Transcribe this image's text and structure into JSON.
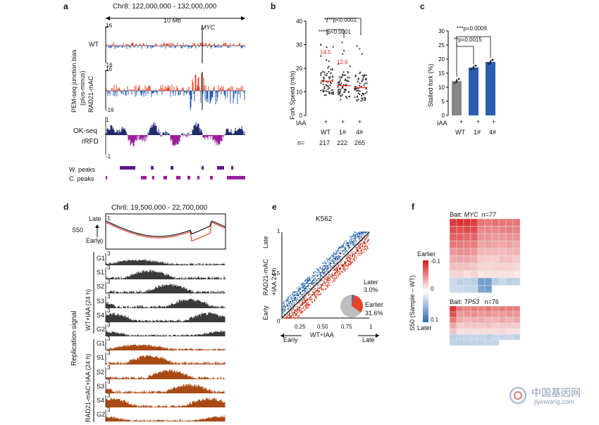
{
  "panels": {
    "a": {
      "letter": "a",
      "region": "Chr8: 122,000,000 - 132,000,000",
      "scale": "10 Mb",
      "gene": "MYC",
      "ylab_pem1": "PEM-seq junction bias",
      "ylab_pem2": "(plus-minus)",
      "track_wt": "WT",
      "track_rad": "RAD21-mAC",
      "ymax": "16",
      "ymin": "-16",
      "ok_seq": "OK-seq",
      "rrfd": "rRFD",
      "ok_max": "1",
      "ok_min": "-1",
      "w_peaks": "W. peaks",
      "c_peaks": "C. peaks"
    },
    "b": {
      "letter": "b",
      "ylabel": "Fork Speed (nt/s)",
      "row_label": "IAA",
      "plus": "+",
      "groups": [
        "WT",
        "1#",
        "4#"
      ],
      "n_label": "n=",
      "n_values": [
        "217",
        "222",
        "265"
      ],
      "medians": [
        "14.5",
        "12.6"
      ],
      "p1": "****p<0.0001",
      "p2": "****p<0.0001",
      "ticks": [
        "0",
        "10",
        "20",
        "30",
        "40"
      ]
    },
    "c": {
      "letter": "c",
      "ylabel": "Stalled fork (%)",
      "row_label": "IAA",
      "plus": "+",
      "groups": [
        "WT",
        "1#",
        "4#"
      ],
      "p1": "***p=0.0009",
      "p2": "**p=0.0015",
      "ticks": [
        "0",
        "5",
        "10",
        "15",
        "20",
        "25",
        "30"
      ]
    },
    "d": {
      "letter": "d",
      "region": "Chr6: 19,500,000 - 22,700,000",
      "late": "Late",
      "early": "Early",
      "s50": "S50",
      "y1": "1",
      "y0": "0",
      "rep_signal": "Replication signal",
      "group_wt": "WT+IAA (24 h)",
      "group_rad": "RAD21-mAC+IAA (24 h)",
      "phases": [
        "G1",
        "S1",
        "S2",
        "S3",
        "S4",
        "G2"
      ],
      "ymax": "3"
    },
    "e": {
      "letter": "e",
      "cell": "K562",
      "ylabel1": "RAD21-mAC",
      "ylabel2": "+IAA 24 h",
      "late_y": "Late",
      "early_y": "Early",
      "xlabel": "WT+IAA",
      "early_x": "Early",
      "late_x": "Late",
      "yticks": [
        "0",
        "0.5",
        "1"
      ],
      "xticks": [
        "0.25",
        "0.50",
        "0.75",
        "1"
      ],
      "later_label": "Later",
      "later_pct": "3.0%",
      "earlier_label": "Earlier",
      "earlier_pct": "31.6%"
    },
    "f": {
      "letter": "f",
      "bait1": "Bait:",
      "gene1": "MYC",
      "n1": "n=77",
      "bait2": "Bait:",
      "gene2": "TP53",
      "n2": "n=76",
      "ylabel": "S50 (Sample – WT)",
      "earlier": "Earlier",
      "later": "Later",
      "cb_top": "-0.1",
      "cb_mid": "0",
      "cb_bot": "0.1"
    }
  },
  "watermark": {
    "cn": "中国基因网",
    "url": "jiyinwang.com"
  },
  "chart_data": [
    {
      "type": "scatter",
      "title": "",
      "categories": [
        "WT",
        "1#",
        "4#"
      ],
      "medians": [
        14.5,
        12.6,
        11.8
      ],
      "n": [
        217,
        222,
        265
      ],
      "ylabel": "Fork Speed (nt/s)",
      "ylim": [
        0,
        40
      ]
    },
    {
      "type": "bar",
      "categories": [
        "WT",
        "1#",
        "4#"
      ],
      "values": [
        12.2,
        17.0,
        19.0
      ],
      "ylabel": "Stalled fork (%)",
      "ylim": [
        0,
        30
      ]
    },
    {
      "type": "pie",
      "labels": [
        "Later",
        "Earlier"
      ],
      "values": [
        3.0,
        31.6
      ],
      "colors": [
        "#2f6fb5",
        "#e8432b"
      ]
    }
  ],
  "colors": {
    "red": "#e8432b",
    "blue": "#2a5db0",
    "navy": "#1f2a6b",
    "purple": "#9b1f9b",
    "brown": "#a84a14",
    "gray": "#333333"
  }
}
